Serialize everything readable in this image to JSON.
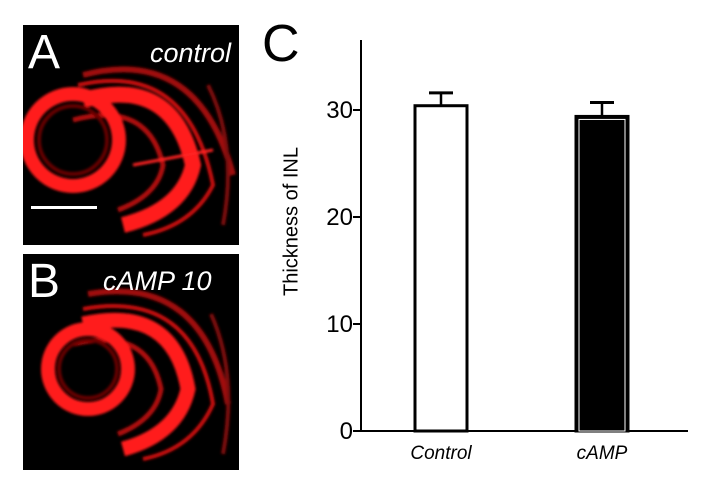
{
  "panels": [
    {
      "letter": "A",
      "condition": "control"
    },
    {
      "letter": "B",
      "condition": "cAMP 10"
    }
  ],
  "chart_letter": "C",
  "colors": {
    "stain": "#ff1a1a",
    "background": "#000000",
    "bar_treated": "#000000",
    "bar_control": "#ffffff"
  },
  "chart_data": {
    "type": "bar",
    "categories": [
      "Control",
      "cAMP"
    ],
    "values": [
      30.4,
      29.4
    ],
    "errors": [
      1.2,
      1.3
    ],
    "bar_fills": [
      "#ffffff",
      "#000000"
    ],
    "ylabel": "Thickness of INL",
    "xlabel": "",
    "title": "",
    "ylim": [
      0,
      36
    ],
    "yticks": [
      "0",
      "10",
      "20",
      "30"
    ],
    "grid": false
  }
}
